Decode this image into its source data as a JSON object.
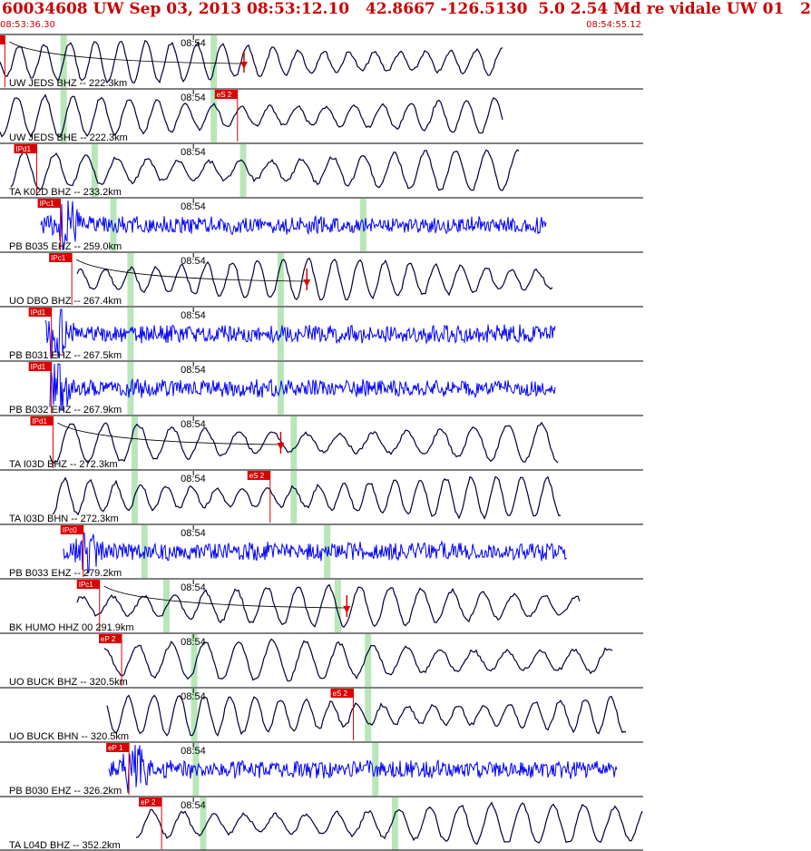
{
  "header": {
    "title": "60034608 UW Sep 03, 2013 08:53:12.10   42.8667 -126.5130  5.0 2.54 Md re vidale UW 01   2",
    "start_time": "08:53:36.30",
    "end_time": "08:54:55.12"
  },
  "colors": {
    "header_text": "#cc0000",
    "short_period_trace": "#0000ff",
    "broadband_trace": "#000033",
    "pick_marker": "#dd0000",
    "window_highlight": "#b8e6b8",
    "panel_border": "#000000"
  },
  "chart_data": {
    "type": "line",
    "x_axis": "time",
    "x_range": [
      "08:53:36.30",
      "08:54:55.12"
    ],
    "minute_tick_label": "08:54",
    "traces": [
      {
        "station": "UW JEDS BHZ -- 222.3km",
        "channel_type": "broadband",
        "pick_label": "IPd1",
        "pick_time": "08:53:36.9",
        "predicted_phase_time": "08:54:06.2",
        "highlight_times": [
          "08:53:44.1",
          "08:54:02.5"
        ]
      },
      {
        "station": "UW JEDS BHE -- 222.3km",
        "channel_type": "broadband",
        "pick_label": "eS 2",
        "pick_time": "08:54:05.4",
        "highlight_times": [
          "08:53:44.1",
          "08:54:02.5"
        ]
      },
      {
        "station": "TA K02D BHZ -- 233.2km",
        "channel_type": "broadband",
        "pick_label": "IPd1",
        "pick_time": "08:53:40.8",
        "highlight_times": [
          "08:53:47.9",
          "08:54:06.1"
        ]
      },
      {
        "station": "PB B035 EHZ -- 259.0km",
        "channel_type": "short_period",
        "pick_label": "IPc1",
        "pick_time": "08:53:43.7",
        "highlight_times": [
          "08:53:50.2",
          "08:54:20.8"
        ]
      },
      {
        "station": "UO DBO BHZ -- 267.4km",
        "channel_type": "broadband",
        "pick_label": "IPc1",
        "pick_time": "08:53:45.1",
        "predicted_phase_time": "08:54:13.9",
        "highlight_times": [
          "08:53:52.3",
          "08:54:10.7"
        ]
      },
      {
        "station": "PB B031 EHZ -- 267.5km",
        "channel_type": "short_period",
        "pick_label": "IPd1",
        "pick_time": "08:53:42.6",
        "highlight_times": [
          "08:53:52.3",
          "08:54:10.7"
        ]
      },
      {
        "station": "PB B032 EHZ -- 267.9km",
        "channel_type": "short_period",
        "pick_label": "IPd1",
        "pick_time": "08:53:42.6",
        "highlight_times": [
          "08:53:52.3",
          "08:54:10.7"
        ]
      },
      {
        "station": "TA I03D BHZ -- 272.3km",
        "channel_type": "broadband",
        "pick_label": "IPd1",
        "pick_time": "08:53:42.8",
        "predicted_phase_time": "08:54:10.7",
        "highlight_times": [
          "08:53:52.8",
          "08:54:12.3"
        ]
      },
      {
        "station": "TA I03D BHN -- 272.3km",
        "channel_type": "broadband",
        "pick_label": "eS 2",
        "pick_time": "08:54:09.4",
        "highlight_times": [
          "08:53:52.8",
          "08:54:12.3"
        ]
      },
      {
        "station": "PB B033 EHZ -- 279.2km",
        "channel_type": "short_period",
        "pick_label": "IPc0",
        "pick_time": "08:53:46.5",
        "highlight_times": [
          "08:53:54.0",
          "08:54:16.4"
        ]
      },
      {
        "station": "BK HUMO HHZ 00 291.9km",
        "channel_type": "broadband",
        "pick_label": "IPc1",
        "pick_time": "08:53:48.5",
        "predicted_phase_time": "08:54:18.8",
        "highlight_times": [
          "08:53:56.7",
          "08:54:17.7"
        ]
      },
      {
        "station": "UO BUCK BHZ -- 320.5km",
        "channel_type": "broadband",
        "pick_label": "eP 2",
        "pick_time": "08:53:51.2",
        "highlight_times": [
          "08:54:00.1",
          "08:54:21.4"
        ]
      },
      {
        "station": "UO BUCK BHN -- 320.5km",
        "channel_type": "broadband",
        "pick_label": "eS 2",
        "pick_time": "08:54:19.6",
        "highlight_times": [
          "08:54:00.1",
          "08:54:21.4"
        ]
      },
      {
        "station": "PB B030 EHZ -- 326.2km",
        "channel_type": "short_period",
        "pick_label": "eP 1",
        "pick_time": "08:53:52.1",
        "highlight_times": [
          "08:54:00.3",
          "08:54:22.3"
        ]
      },
      {
        "station": "TA L04D BHZ -- 352.2km",
        "channel_type": "broadband",
        "pick_label": "eP 2",
        "pick_time": "08:53:56.1",
        "highlight_times": [
          "08:54:01.2",
          "08:54:24.7"
        ]
      }
    ]
  }
}
